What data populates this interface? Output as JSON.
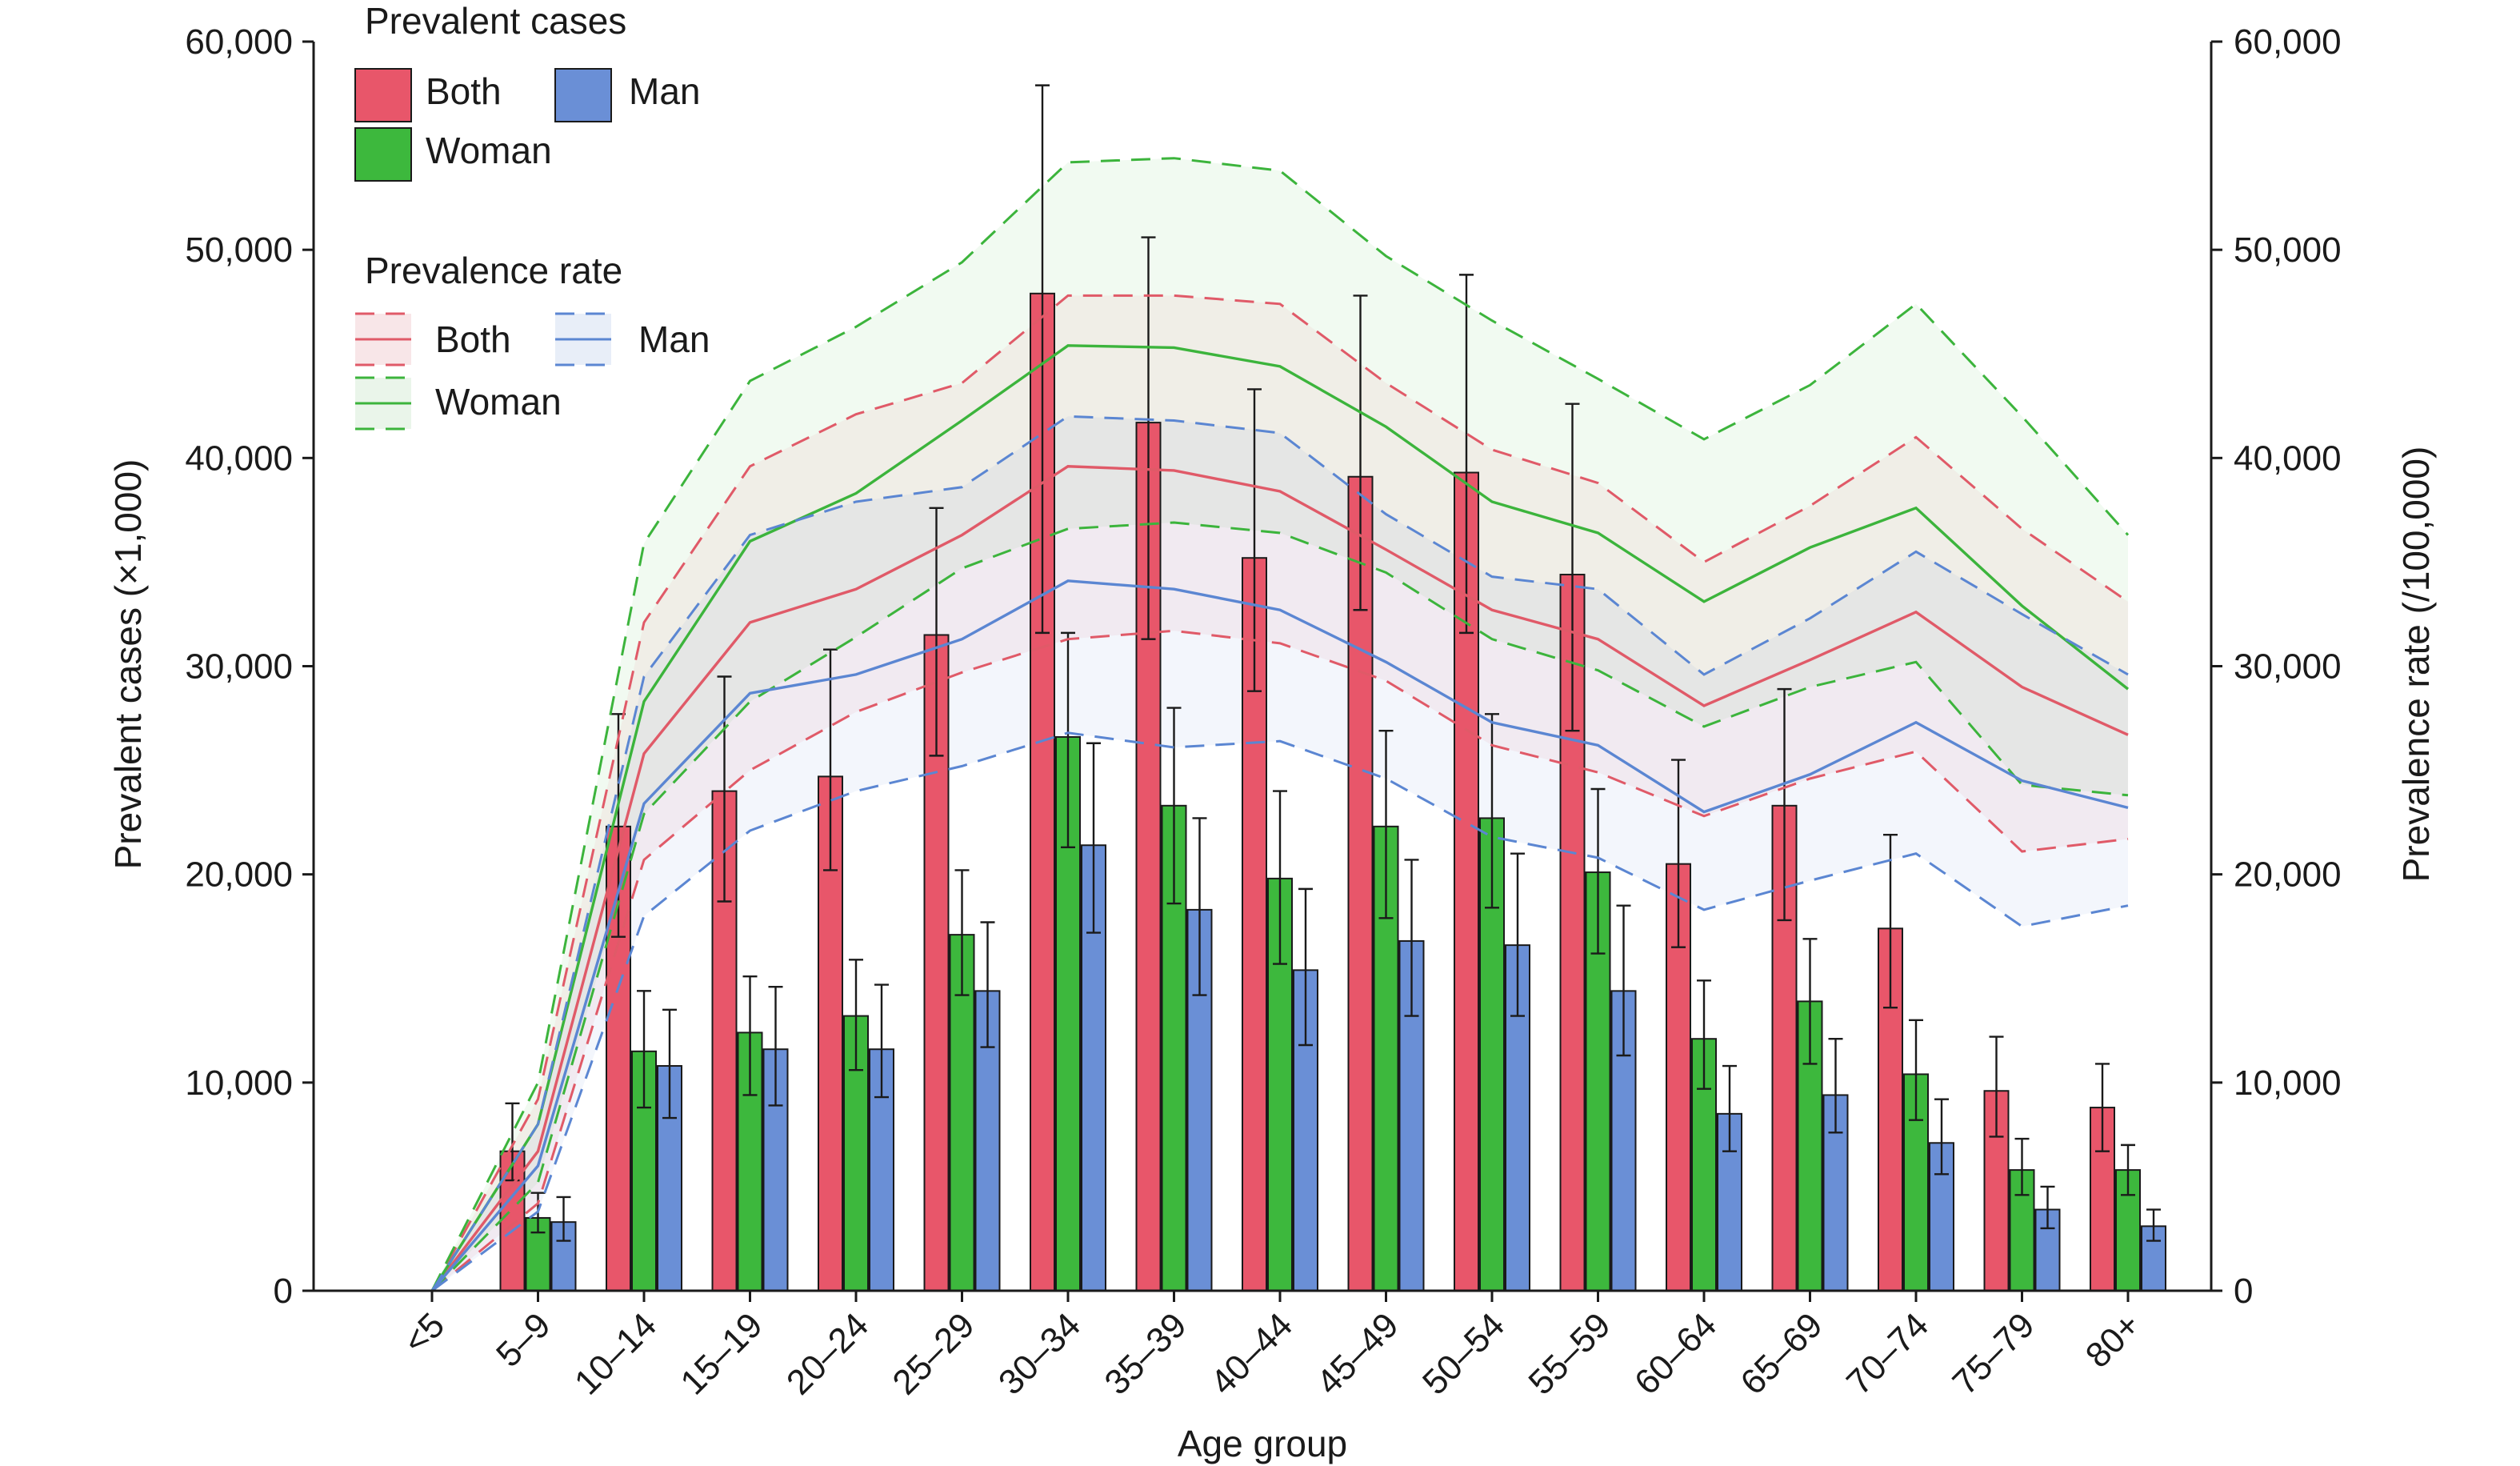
{
  "chart_data": {
    "type": "bar",
    "categories": [
      "<5",
      "5–9",
      "10–14",
      "15–19",
      "20–24",
      "25–29",
      "30–34",
      "35–39",
      "40–44",
      "45–49",
      "50–54",
      "55–59",
      "60–64",
      "65–69",
      "70–74",
      "75–79",
      "80+"
    ],
    "xlabel": "Age group",
    "ylabel_left": "Prevalent cases (×1,000)",
    "ylabel_right": "Prevalence rate (/100,000)",
    "ylim_left": [
      0,
      60000
    ],
    "ylim_right": [
      0,
      60000
    ],
    "yticks": [
      0,
      10000,
      20000,
      30000,
      40000,
      50000,
      60000
    ],
    "ytick_labels": [
      "0",
      "10,000",
      "20,000",
      "30,000",
      "40,000",
      "50,000",
      "60,000"
    ],
    "grid": false,
    "legend": {
      "placement": "top-left",
      "cases_title": "Prevalent cases",
      "rate_title": "Prevalence rate",
      "both": "Both",
      "woman": "Woman",
      "man": "Man"
    },
    "colors": {
      "both": "#e8566a",
      "woman": "#3db83d",
      "man": "#6a8fd6",
      "both_line": "#e05a68",
      "woman_line": "#3cb43c",
      "man_line": "#5b86d2"
    },
    "bar_series": [
      {
        "name": "Both",
        "values": [
          0,
          6700,
          22300,
          24000,
          24700,
          31500,
          47900,
          41700,
          35200,
          39100,
          39300,
          34400,
          20500,
          23300,
          17400,
          9600,
          8800
        ],
        "lower": [
          0,
          5300,
          17000,
          18700,
          20200,
          25700,
          31600,
          31300,
          28800,
          32700,
          31600,
          26900,
          16500,
          17800,
          13600,
          7400,
          6700
        ],
        "upper": [
          0,
          9000,
          27700,
          29500,
          30800,
          37600,
          57900,
          50600,
          43300,
          47800,
          48800,
          42600,
          25500,
          28900,
          21900,
          12200,
          10900
        ]
      },
      {
        "name": "Woman",
        "values": [
          0,
          3500,
          11500,
          12400,
          13200,
          17100,
          26600,
          23300,
          19800,
          22300,
          22700,
          20100,
          12100,
          13900,
          10400,
          5800,
          5800
        ],
        "lower": [
          0,
          2800,
          8800,
          9400,
          10600,
          14200,
          21300,
          18600,
          15700,
          17900,
          18400,
          16200,
          9700,
          10900,
          8200,
          4600,
          4600
        ],
        "upper": [
          0,
          4700,
          14400,
          15100,
          15900,
          20200,
          31600,
          28000,
          24000,
          26900,
          27700,
          24100,
          14900,
          16900,
          13000,
          7300,
          7000
        ]
      },
      {
        "name": "Man",
        "values": [
          0,
          3300,
          10800,
          11600,
          11600,
          14400,
          21400,
          18300,
          15400,
          16800,
          16600,
          14400,
          8500,
          9400,
          7100,
          3900,
          3100
        ],
        "lower": [
          0,
          2400,
          8300,
          8900,
          9300,
          11700,
          17200,
          14200,
          11800,
          13200,
          13200,
          11300,
          6700,
          7600,
          5600,
          3000,
          2400
        ],
        "upper": [
          0,
          4500,
          13500,
          14600,
          14700,
          17700,
          26300,
          22700,
          19300,
          20700,
          21000,
          18500,
          10800,
          12100,
          9200,
          5000,
          3900
        ]
      }
    ],
    "line_series": [
      {
        "name": "Both",
        "values": [
          0,
          6700,
          25800,
          32100,
          33700,
          36300,
          39600,
          39400,
          38400,
          35600,
          32700,
          31300,
          28100,
          30300,
          32600,
          29000,
          26700
        ],
        "lower": [
          0,
          4200,
          20700,
          25000,
          27800,
          29700,
          31300,
          31700,
          31100,
          29300,
          26200,
          24900,
          22800,
          24600,
          25900,
          21100,
          21700
        ],
        "upper": [
          0,
          9200,
          32100,
          39600,
          42100,
          43600,
          47800,
          47800,
          47400,
          43600,
          40400,
          38800,
          35000,
          37700,
          41000,
          36600,
          33100
        ]
      },
      {
        "name": "Woman",
        "values": [
          0,
          8000,
          28300,
          36000,
          38300,
          41800,
          45400,
          45300,
          44400,
          41500,
          37900,
          36400,
          33100,
          35700,
          37600,
          32900,
          28900
        ],
        "lower": [
          0,
          5200,
          22900,
          28300,
          31400,
          34700,
          36600,
          36900,
          36400,
          34500,
          31300,
          29800,
          27100,
          29000,
          30200,
          24300,
          23800
        ],
        "upper": [
          0,
          10000,
          35900,
          43700,
          46300,
          49400,
          54200,
          54400,
          53800,
          49700,
          46600,
          43800,
          40900,
          43500,
          47400,
          42000,
          36300
        ]
      },
      {
        "name": "Man",
        "values": [
          0,
          6000,
          23400,
          28700,
          29600,
          31300,
          34100,
          33700,
          32700,
          30200,
          27300,
          26200,
          23000,
          24800,
          27300,
          24500,
          23200
        ],
        "lower": [
          0,
          3800,
          18000,
          22100,
          24000,
          25200,
          26800,
          26100,
          26400,
          24600,
          21800,
          20800,
          18300,
          19700,
          21000,
          17500,
          18500
        ],
        "upper": [
          0,
          8000,
          29500,
          36300,
          37900,
          38600,
          42000,
          41800,
          41200,
          37300,
          34300,
          33700,
          29600,
          32300,
          35500,
          32500,
          29600
        ]
      }
    ]
  }
}
